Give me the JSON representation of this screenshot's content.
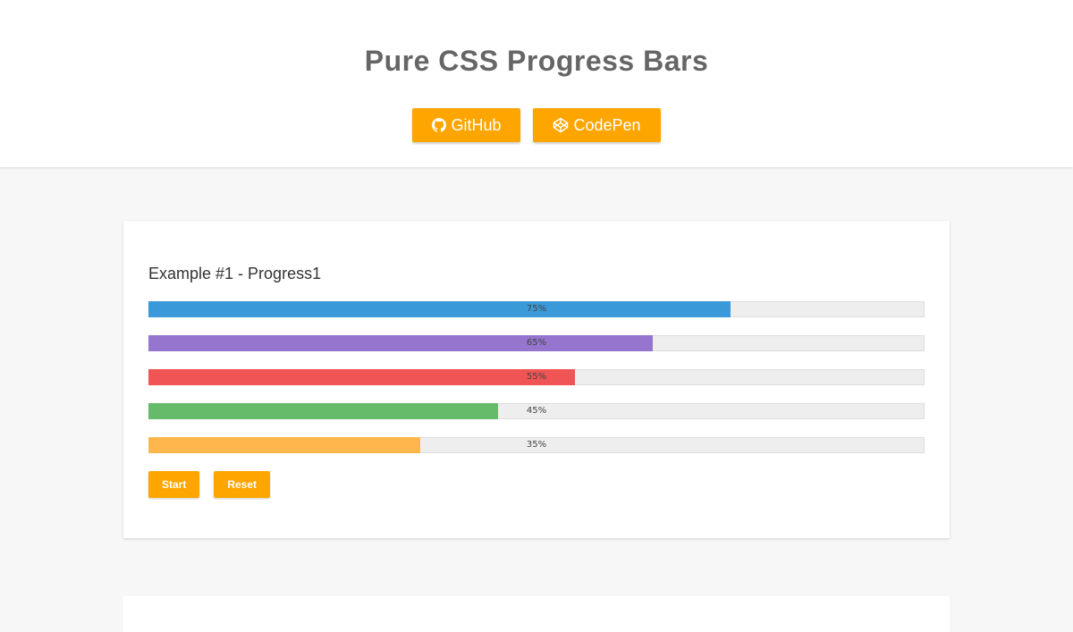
{
  "header": {
    "title": "Pure CSS Progress Bars",
    "buttons": [
      {
        "label": "GitHub",
        "icon": "github-icon"
      },
      {
        "label": "CodePen",
        "icon": "codepen-icon"
      }
    ],
    "accent": "#ffa500"
  },
  "example1": {
    "title": "Example #1 - Progress1",
    "bars": [
      {
        "label": "75%",
        "value": 75,
        "color": "#3a9ad9"
      },
      {
        "label": "65%",
        "value": 65,
        "color": "#9575cd"
      },
      {
        "label": "55%",
        "value": 55,
        "color": "#f05454"
      },
      {
        "label": "45%",
        "value": 45,
        "color": "#66bb6a"
      },
      {
        "label": "35%",
        "value": 35,
        "color": "#ffb74d"
      }
    ],
    "start_label": "Start",
    "reset_label": "Reset"
  }
}
